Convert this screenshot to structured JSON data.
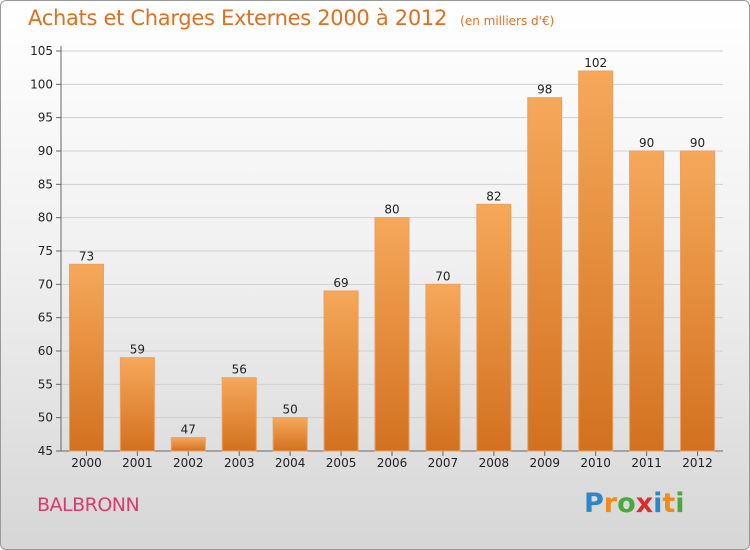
{
  "header": {
    "title": "Achats et Charges Externes 2000 à 2012",
    "unit": "(en milliers d'€)"
  },
  "footer": {
    "place": "BALBRONN",
    "logo": {
      "text": "Proxiti",
      "letter_colors": [
        "#2e86c8",
        "#f08a1c",
        "#4aa83c",
        "#d8302c",
        "#2e86c8",
        "#f08a1c",
        "#4aa83c"
      ]
    }
  },
  "colors": {
    "accent": "#e07020",
    "place": "#d63c6e",
    "bar_top": "#f6a85a",
    "bar_bottom": "#d2711f"
  },
  "chart_data": {
    "type": "bar",
    "title": "Achats et Charges Externes 2000 à 2012",
    "subtitle": "(en milliers d'€)",
    "categories": [
      "2000",
      "2001",
      "2002",
      "2003",
      "2004",
      "2005",
      "2006",
      "2007",
      "2008",
      "2009",
      "2010",
      "2011",
      "2012"
    ],
    "values": [
      73,
      59,
      47,
      56,
      50,
      69,
      80,
      70,
      82,
      98,
      102,
      90,
      90
    ],
    "ylim": [
      45,
      105
    ],
    "yticks": [
      45,
      50,
      55,
      60,
      65,
      70,
      75,
      80,
      85,
      90,
      95,
      100,
      105
    ],
    "grid": true,
    "legend": "none"
  }
}
